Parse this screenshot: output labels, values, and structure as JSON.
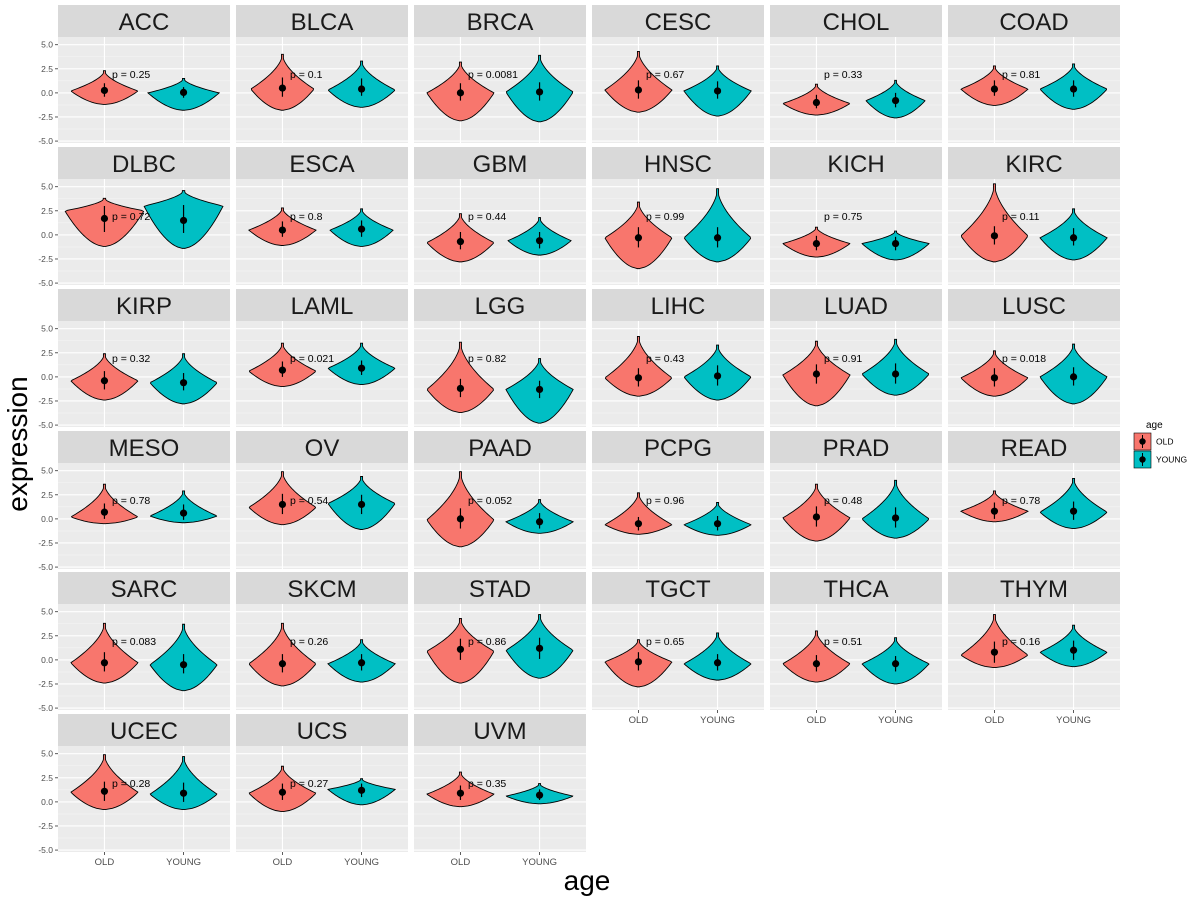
{
  "chart_data": {
    "type": "violin",
    "facet_by": "cancer_type",
    "xlabel": "age",
    "ylabel": "expression",
    "categories": [
      "OLD",
      "YOUNG"
    ],
    "yticks": [
      5.0,
      2.5,
      0.0,
      -2.5,
      -5.0
    ],
    "ytick_labels": [
      "5.0",
      "2.5",
      "0.0",
      "-2.5",
      "-5.0"
    ],
    "ylim": [
      -5.2,
      5.8
    ],
    "colors": {
      "OLD": "#F8766D",
      "YOUNG": "#00BFC4"
    },
    "legend": {
      "title": "age",
      "entries": [
        "OLD",
        "YOUNG"
      ],
      "position": "right"
    },
    "panels": [
      {
        "name": "ACC",
        "p_label": "p = 0.25",
        "OLD": {
          "mean": 0.25,
          "ci": [
            -0.4,
            1.0
          ],
          "min": -1.2,
          "max": 2.3,
          "mode": 0.2,
          "width": 0.85
        },
        "YOUNG": {
          "mean": 0.05,
          "ci": [
            -0.5,
            0.6
          ],
          "min": -1.8,
          "max": 1.5,
          "mode": 0.0,
          "width": 0.9
        }
      },
      {
        "name": "BLCA",
        "p_label": "p = 0.1",
        "OLD": {
          "mean": 0.5,
          "ci": [
            -0.4,
            1.6
          ],
          "min": -1.8,
          "max": 4.0,
          "mode": 0.4,
          "width": 0.8
        },
        "YOUNG": {
          "mean": 0.4,
          "ci": [
            -0.3,
            1.5
          ],
          "min": -1.5,
          "max": 3.3,
          "mode": 0.3,
          "width": 0.85
        }
      },
      {
        "name": "BRCA",
        "p_label": "p = 0.0081",
        "OLD": {
          "mean": 0.0,
          "ci": [
            -0.8,
            1.0
          ],
          "min": -2.9,
          "max": 3.2,
          "mode": 0.0,
          "width": 0.85
        },
        "YOUNG": {
          "mean": 0.1,
          "ci": [
            -0.8,
            1.1
          ],
          "min": -3.0,
          "max": 3.9,
          "mode": 0.1,
          "width": 0.85
        }
      },
      {
        "name": "CESC",
        "p_label": "p = 0.67",
        "OLD": {
          "mean": 0.3,
          "ci": [
            -0.6,
            1.3
          ],
          "min": -2.0,
          "max": 4.3,
          "mode": 0.3,
          "width": 0.85
        },
        "YOUNG": {
          "mean": 0.2,
          "ci": [
            -0.6,
            1.2
          ],
          "min": -2.4,
          "max": 2.8,
          "mode": 0.2,
          "width": 0.85
        }
      },
      {
        "name": "CHOL",
        "p_label": "p = 0.33",
        "OLD": {
          "mean": -1.0,
          "ci": [
            -1.6,
            -0.2
          ],
          "min": -2.3,
          "max": 0.9,
          "mode": -1.1,
          "width": 0.85
        },
        "YOUNG": {
          "mean": -0.8,
          "ci": [
            -1.5,
            0.0
          ],
          "min": -2.6,
          "max": 1.3,
          "mode": -0.8,
          "width": 0.75
        }
      },
      {
        "name": "COAD",
        "p_label": "p = 0.81",
        "OLD": {
          "mean": 0.4,
          "ci": [
            -0.3,
            1.3
          ],
          "min": -1.3,
          "max": 2.8,
          "mode": 0.4,
          "width": 0.85
        },
        "YOUNG": {
          "mean": 0.4,
          "ci": [
            -0.4,
            1.3
          ],
          "min": -1.7,
          "max": 3.0,
          "mode": 0.4,
          "width": 0.85
        }
      },
      {
        "name": "DLBC",
        "p_label": "p = 0.72",
        "OLD": {
          "mean": 1.7,
          "ci": [
            0.3,
            3.0
          ],
          "min": -1.2,
          "max": 3.8,
          "mode": 2.5,
          "width": 1.0
        },
        "YOUNG": {
          "mean": 1.5,
          "ci": [
            0.2,
            3.1
          ],
          "min": -1.4,
          "max": 4.6,
          "mode": 3.0,
          "width": 1.0
        }
      },
      {
        "name": "ESCA",
        "p_label": "p = 0.8",
        "OLD": {
          "mean": 0.5,
          "ci": [
            -0.2,
            1.4
          ],
          "min": -1.1,
          "max": 2.8,
          "mode": 0.5,
          "width": 0.85
        },
        "YOUNG": {
          "mean": 0.6,
          "ci": [
            -0.2,
            1.5
          ],
          "min": -1.2,
          "max": 2.7,
          "mode": 0.5,
          "width": 0.8
        }
      },
      {
        "name": "GBM",
        "p_label": "p = 0.44",
        "OLD": {
          "mean": -0.7,
          "ci": [
            -1.5,
            0.3
          ],
          "min": -2.8,
          "max": 2.2,
          "mode": -0.8,
          "width": 0.85
        },
        "YOUNG": {
          "mean": -0.6,
          "ci": [
            -1.4,
            0.3
          ],
          "min": -2.1,
          "max": 1.8,
          "mode": -0.6,
          "width": 0.8
        }
      },
      {
        "name": "HNSC",
        "p_label": "p = 0.99",
        "OLD": {
          "mean": -0.3,
          "ci": [
            -1.3,
            0.8
          ],
          "min": -3.5,
          "max": 3.4,
          "mode": -0.3,
          "width": 0.85
        },
        "YOUNG": {
          "mean": -0.3,
          "ci": [
            -1.3,
            0.8
          ],
          "min": -2.8,
          "max": 4.8,
          "mode": -0.3,
          "width": 0.85
        }
      },
      {
        "name": "KICH",
        "p_label": "p = 0.75",
        "OLD": {
          "mean": -0.9,
          "ci": [
            -1.6,
            -0.1
          ],
          "min": -2.3,
          "max": 0.8,
          "mode": -0.9,
          "width": 0.85
        },
        "YOUNG": {
          "mean": -0.9,
          "ci": [
            -1.6,
            -0.2
          ],
          "min": -2.6,
          "max": 0.4,
          "mode": -0.9,
          "width": 0.85
        }
      },
      {
        "name": "KIRC",
        "p_label": "p = 0.11",
        "OLD": {
          "mean": -0.1,
          "ci": [
            -1.0,
            0.9
          ],
          "min": -2.8,
          "max": 5.3,
          "mode": -0.1,
          "width": 0.85
        },
        "YOUNG": {
          "mean": -0.3,
          "ci": [
            -1.1,
            0.7
          ],
          "min": -2.6,
          "max": 2.7,
          "mode": -0.3,
          "width": 0.85
        }
      },
      {
        "name": "KIRP",
        "p_label": "p = 0.32",
        "OLD": {
          "mean": -0.4,
          "ci": [
            -1.3,
            0.6
          ],
          "min": -2.4,
          "max": 2.4,
          "mode": -0.4,
          "width": 0.85
        },
        "YOUNG": {
          "mean": -0.6,
          "ci": [
            -1.4,
            0.4
          ],
          "min": -2.8,
          "max": 2.4,
          "mode": -0.6,
          "width": 0.85
        }
      },
      {
        "name": "LAML",
        "p_label": "p = 0.021",
        "OLD": {
          "mean": 0.7,
          "ci": [
            0.0,
            1.6
          ],
          "min": -1.0,
          "max": 3.5,
          "mode": 0.6,
          "width": 0.85
        },
        "YOUNG": {
          "mean": 0.9,
          "ci": [
            0.2,
            1.7
          ],
          "min": -0.8,
          "max": 3.5,
          "mode": 0.9,
          "width": 0.85
        }
      },
      {
        "name": "LGG",
        "p_label": "p = 0.82",
        "OLD": {
          "mean": -1.2,
          "ci": [
            -2.1,
            -0.2
          ],
          "min": -3.7,
          "max": 3.6,
          "mode": -1.3,
          "width": 0.85
        },
        "YOUNG": {
          "mean": -1.3,
          "ci": [
            -2.2,
            -0.4
          ],
          "min": -4.8,
          "max": 1.9,
          "mode": -1.3,
          "width": 0.85
        }
      },
      {
        "name": "LIHC",
        "p_label": "p = 0.43",
        "OLD": {
          "mean": -0.1,
          "ci": [
            -1.0,
            0.9
          ],
          "min": -2.0,
          "max": 4.2,
          "mode": -0.1,
          "width": 0.85
        },
        "YOUNG": {
          "mean": 0.1,
          "ci": [
            -0.9,
            1.2
          ],
          "min": -2.4,
          "max": 3.3,
          "mode": 0.0,
          "width": 0.85
        }
      },
      {
        "name": "LUAD",
        "p_label": "p = 0.91",
        "OLD": {
          "mean": 0.3,
          "ci": [
            -0.7,
            1.3
          ],
          "min": -3.0,
          "max": 3.7,
          "mode": 0.2,
          "width": 0.85
        },
        "YOUNG": {
          "mean": 0.3,
          "ci": [
            -0.7,
            1.4
          ],
          "min": -1.9,
          "max": 3.9,
          "mode": 0.3,
          "width": 0.85
        }
      },
      {
        "name": "LUSC",
        "p_label": "p = 0.018",
        "OLD": {
          "mean": -0.1,
          "ci": [
            -1.0,
            0.9
          ],
          "min": -2.0,
          "max": 2.7,
          "mode": -0.1,
          "width": 0.85
        },
        "YOUNG": {
          "mean": 0.0,
          "ci": [
            -0.9,
            1.0
          ],
          "min": -2.8,
          "max": 3.4,
          "mode": 0.0,
          "width": 0.85
        }
      },
      {
        "name": "MESO",
        "p_label": "p = 0.78",
        "OLD": {
          "mean": 0.7,
          "ci": [
            0.0,
            1.6
          ],
          "min": -0.5,
          "max": 3.6,
          "mode": 0.2,
          "width": 0.85
        },
        "YOUNG": {
          "mean": 0.6,
          "ci": [
            -0.1,
            1.5
          ],
          "min": -0.4,
          "max": 2.9,
          "mode": 0.3,
          "width": 0.85
        }
      },
      {
        "name": "OV",
        "p_label": "p = 0.54",
        "OLD": {
          "mean": 1.5,
          "ci": [
            0.5,
            2.6
          ],
          "min": -0.6,
          "max": 4.9,
          "mode": 1.2,
          "width": 0.85
        },
        "YOUNG": {
          "mean": 1.5,
          "ci": [
            0.5,
            2.5
          ],
          "min": -1.1,
          "max": 4.4,
          "mode": 1.6,
          "width": 0.85
        }
      },
      {
        "name": "PAAD",
        "p_label": "p = 0.052",
        "OLD": {
          "mean": 0.0,
          "ci": [
            -1.0,
            1.1
          ],
          "min": -2.9,
          "max": 4.9,
          "mode": -0.1,
          "width": 0.85
        },
        "YOUNG": {
          "mean": -0.3,
          "ci": [
            -1.0,
            0.6
          ],
          "min": -1.5,
          "max": 2.0,
          "mode": -0.3,
          "width": 0.85
        }
      },
      {
        "name": "PCPG",
        "p_label": "p = 0.96",
        "OLD": {
          "mean": -0.5,
          "ci": [
            -1.2,
            0.2
          ],
          "min": -1.6,
          "max": 2.7,
          "mode": -0.6,
          "width": 0.85
        },
        "YOUNG": {
          "mean": -0.5,
          "ci": [
            -1.2,
            0.3
          ],
          "min": -1.7,
          "max": 1.7,
          "mode": -0.6,
          "width": 0.85
        }
      },
      {
        "name": "PRAD",
        "p_label": "p = 0.48",
        "OLD": {
          "mean": 0.2,
          "ci": [
            -0.8,
            1.3
          ],
          "min": -2.3,
          "max": 3.6,
          "mode": 0.1,
          "width": 0.85
        },
        "YOUNG": {
          "mean": 0.1,
          "ci": [
            -0.9,
            1.2
          ],
          "min": -2.0,
          "max": 4.0,
          "mode": 0.0,
          "width": 0.85
        }
      },
      {
        "name": "READ",
        "p_label": "p = 0.78",
        "OLD": {
          "mean": 0.8,
          "ci": [
            0.0,
            1.7
          ],
          "min": -0.3,
          "max": 2.9,
          "mode": 0.8,
          "width": 0.85
        },
        "YOUNG": {
          "mean": 0.8,
          "ci": [
            -0.1,
            1.8
          ],
          "min": -1.0,
          "max": 4.2,
          "mode": 0.7,
          "width": 0.85
        }
      },
      {
        "name": "SARC",
        "p_label": "p = 0.083",
        "OLD": {
          "mean": -0.3,
          "ci": [
            -1.2,
            0.8
          ],
          "min": -2.4,
          "max": 3.8,
          "mode": -0.3,
          "width": 0.85
        },
        "YOUNG": {
          "mean": -0.5,
          "ci": [
            -1.4,
            0.6
          ],
          "min": -3.2,
          "max": 3.7,
          "mode": -0.5,
          "width": 0.85
        }
      },
      {
        "name": "SKCM",
        "p_label": "p = 0.26",
        "OLD": {
          "mean": -0.4,
          "ci": [
            -1.3,
            0.6
          ],
          "min": -2.7,
          "max": 3.8,
          "mode": -0.4,
          "width": 0.85
        },
        "YOUNG": {
          "mean": -0.3,
          "ci": [
            -1.1,
            0.6
          ],
          "min": -2.3,
          "max": 2.1,
          "mode": -0.4,
          "width": 0.85
        }
      },
      {
        "name": "STAD",
        "p_label": "p = 0.86",
        "OLD": {
          "mean": 1.1,
          "ci": [
            0.0,
            2.2
          ],
          "min": -2.4,
          "max": 4.3,
          "mode": 0.9,
          "width": 0.85
        },
        "YOUNG": {
          "mean": 1.2,
          "ci": [
            0.1,
            2.3
          ],
          "min": -1.9,
          "max": 4.7,
          "mode": 1.0,
          "width": 0.85
        }
      },
      {
        "name": "TGCT",
        "p_label": "p = 0.65",
        "OLD": {
          "mean": -0.2,
          "ci": [
            -1.1,
            0.8
          ],
          "min": -2.8,
          "max": 2.1,
          "mode": -0.2,
          "width": 0.85
        },
        "YOUNG": {
          "mean": -0.3,
          "ci": [
            -1.1,
            0.6
          ],
          "min": -2.1,
          "max": 2.8,
          "mode": -0.4,
          "width": 0.85
        }
      },
      {
        "name": "THCA",
        "p_label": "p = 0.51",
        "OLD": {
          "mean": -0.4,
          "ci": [
            -1.2,
            0.5
          ],
          "min": -2.3,
          "max": 3.0,
          "mode": -0.4,
          "width": 0.85
        },
        "YOUNG": {
          "mean": -0.4,
          "ci": [
            -1.2,
            0.4
          ],
          "min": -2.5,
          "max": 2.3,
          "mode": -0.4,
          "width": 0.85
        }
      },
      {
        "name": "THYM",
        "p_label": "p = 0.16",
        "OLD": {
          "mean": 0.8,
          "ci": [
            -0.3,
            1.9
          ],
          "min": -0.8,
          "max": 4.7,
          "mode": 0.5,
          "width": 0.85
        },
        "YOUNG": {
          "mean": 1.0,
          "ci": [
            0.0,
            2.0
          ],
          "min": -0.7,
          "max": 3.6,
          "mode": 0.8,
          "width": 0.85
        }
      },
      {
        "name": "UCEC",
        "p_label": "p = 0.28",
        "OLD": {
          "mean": 1.1,
          "ci": [
            0.1,
            2.1
          ],
          "min": -0.8,
          "max": 4.9,
          "mode": 1.0,
          "width": 0.85
        },
        "YOUNG": {
          "mean": 0.9,
          "ci": [
            0.0,
            2.0
          ],
          "min": -0.8,
          "max": 4.7,
          "mode": 0.8,
          "width": 0.85
        }
      },
      {
        "name": "UCS",
        "p_label": "p = 0.27",
        "OLD": {
          "mean": 1.0,
          "ci": [
            0.2,
            1.9
          ],
          "min": -1.0,
          "max": 3.7,
          "mode": 0.9,
          "width": 0.85
        },
        "YOUNG": {
          "mean": 1.2,
          "ci": [
            0.5,
            1.9
          ],
          "min": -0.3,
          "max": 2.4,
          "mode": 1.3,
          "width": 0.85
        }
      },
      {
        "name": "UVM",
        "p_label": "p = 0.35",
        "OLD": {
          "mean": 0.9,
          "ci": [
            0.2,
            1.7
          ],
          "min": -0.5,
          "max": 3.1,
          "mode": 0.8,
          "width": 0.85
        },
        "YOUNG": {
          "mean": 0.7,
          "ci": [
            0.2,
            1.3
          ],
          "min": -0.2,
          "max": 1.9,
          "mode": 0.6,
          "width": 0.85
        }
      }
    ]
  }
}
